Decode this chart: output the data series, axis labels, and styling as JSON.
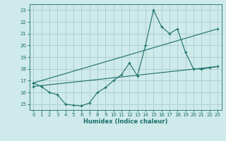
{
  "xlabel": "Humidex (Indice chaleur)",
  "bg_color": "#ceeaea",
  "grid_color": "#aacccc",
  "line_color": "#1a6e6a",
  "xlim": [
    -0.5,
    23.5
  ],
  "ylim": [
    14.5,
    23.5
  ],
  "xticks": [
    0,
    1,
    2,
    3,
    4,
    5,
    6,
    7,
    8,
    9,
    10,
    11,
    12,
    13,
    14,
    15,
    16,
    17,
    18,
    19,
    20,
    21,
    22,
    23
  ],
  "yticks": [
    15,
    16,
    17,
    18,
    19,
    20,
    21,
    22,
    23
  ],
  "line1_x": [
    0,
    1,
    2,
    3,
    4,
    5,
    6,
    7,
    8,
    9,
    10,
    11,
    12,
    13,
    14,
    15,
    16,
    17,
    18,
    19,
    20,
    21,
    22,
    23
  ],
  "line1_y": [
    16.8,
    16.5,
    16.0,
    15.8,
    15.0,
    14.9,
    14.85,
    15.1,
    16.0,
    16.4,
    17.0,
    17.5,
    18.5,
    17.4,
    20.0,
    23.0,
    21.6,
    21.0,
    21.4,
    19.4,
    18.0,
    18.0,
    18.1,
    18.2
  ],
  "line2_x": [
    0,
    23
  ],
  "line2_y": [
    16.8,
    21.4
  ],
  "line3_x": [
    0,
    23
  ],
  "line3_y": [
    16.5,
    18.2
  ]
}
